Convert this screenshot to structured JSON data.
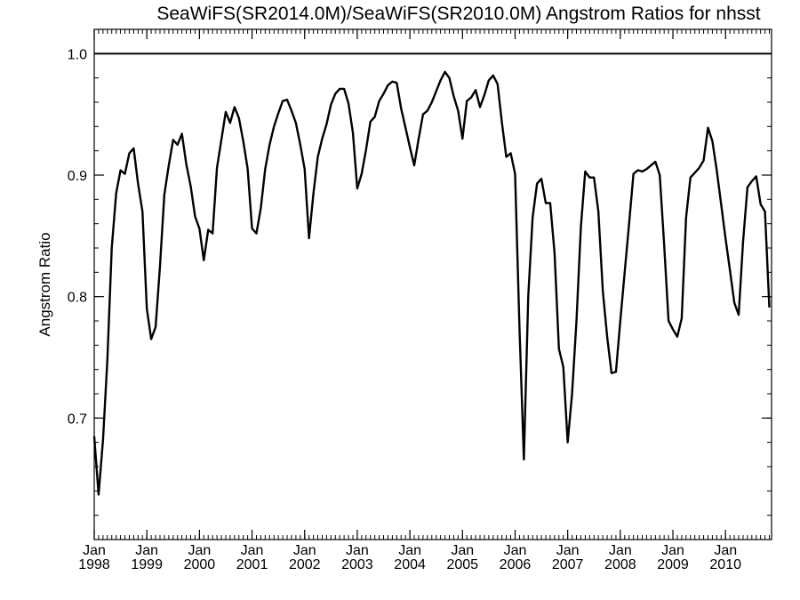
{
  "chart_data": {
    "type": "line",
    "title": "SeaWiFS(SR2014.0M)/SeaWiFS(SR2010.0M)  Angstrom Ratios for nhsst",
    "xlabel": "",
    "ylabel": "Angstrom Ratio",
    "xlim": [
      1998.0,
      2010.875
    ],
    "ylim": [
      0.6,
      1.02
    ],
    "x_ticks": [
      {
        "month": "Jan",
        "year": "1998",
        "value": 1998
      },
      {
        "month": "Jan",
        "year": "1999",
        "value": 1999
      },
      {
        "month": "Jan",
        "year": "2000",
        "value": 2000
      },
      {
        "month": "Jan",
        "year": "2001",
        "value": 2001
      },
      {
        "month": "Jan",
        "year": "2002",
        "value": 2002
      },
      {
        "month": "Jan",
        "year": "2003",
        "value": 2003
      },
      {
        "month": "Jan",
        "year": "2004",
        "value": 2004
      },
      {
        "month": "Jan",
        "year": "2005",
        "value": 2005
      },
      {
        "month": "Jan",
        "year": "2006",
        "value": 2006
      },
      {
        "month": "Jan",
        "year": "2007",
        "value": 2007
      },
      {
        "month": "Jan",
        "year": "2008",
        "value": 2008
      },
      {
        "month": "Jan",
        "year": "2009",
        "value": 2009
      },
      {
        "month": "Jan",
        "year": "2010",
        "value": 2010
      }
    ],
    "y_ticks": [
      {
        "label": "0.7",
        "value": 0.7
      },
      {
        "label": "0.8",
        "value": 0.8
      },
      {
        "label": "0.9",
        "value": 0.9
      },
      {
        "label": "1.0",
        "value": 1.0
      }
    ],
    "reference_line": {
      "y": 1.0
    },
    "grid": false,
    "series": [
      {
        "x": [
          1998.0,
          1998.083,
          1998.167,
          1998.25,
          1998.333,
          1998.417,
          1998.5,
          1998.583,
          1998.667,
          1998.75,
          1998.833,
          1998.917,
          1999.0,
          1999.083,
          1999.167,
          1999.25,
          1999.333,
          1999.417,
          1999.5,
          1999.583,
          1999.667,
          1999.75,
          1999.833,
          1999.917,
          2000.0,
          2000.083,
          2000.167,
          2000.25,
          2000.333,
          2000.417,
          2000.5,
          2000.583,
          2000.667,
          2000.75,
          2000.833,
          2000.917,
          2001.0,
          2001.083,
          2001.167,
          2001.25,
          2001.333,
          2001.417,
          2001.5,
          2001.583,
          2001.667,
          2001.75,
          2001.833,
          2001.917,
          2002.0,
          2002.083,
          2002.167,
          2002.25,
          2002.333,
          2002.417,
          2002.5,
          2002.583,
          2002.667,
          2002.75,
          2002.833,
          2002.917,
          2003.0,
          2003.083,
          2003.167,
          2003.25,
          2003.333,
          2003.417,
          2003.5,
          2003.583,
          2003.667,
          2003.75,
          2003.833,
          2003.917,
          2004.0,
          2004.083,
          2004.167,
          2004.25,
          2004.333,
          2004.417,
          2004.5,
          2004.583,
          2004.667,
          2004.75,
          2004.833,
          2004.917,
          2005.0,
          2005.083,
          2005.167,
          2005.25,
          2005.333,
          2005.417,
          2005.5,
          2005.583,
          2005.667,
          2005.75,
          2005.833,
          2005.917,
          2006.0,
          2006.083,
          2006.167,
          2006.25,
          2006.333,
          2006.417,
          2006.5,
          2006.583,
          2006.667,
          2006.75,
          2006.833,
          2006.917,
          2007.0,
          2007.083,
          2007.167,
          2007.25,
          2007.333,
          2007.417,
          2007.5,
          2007.583,
          2007.667,
          2007.75,
          2007.833,
          2007.917,
          2008.0,
          2008.083,
          2008.167,
          2008.25,
          2008.333,
          2008.417,
          2008.5,
          2008.583,
          2008.667,
          2008.75,
          2008.833,
          2008.917,
          2009.0,
          2009.083,
          2009.167,
          2009.25,
          2009.333,
          2009.417,
          2009.5,
          2009.583,
          2009.667,
          2009.75,
          2009.833,
          2009.917,
          2010.0,
          2010.083,
          2010.167,
          2010.25,
          2010.333,
          2010.417,
          2010.5,
          2010.583,
          2010.667,
          2010.75,
          2010.833
        ],
        "values": [
          0.685,
          0.637,
          0.682,
          0.748,
          0.84,
          0.885,
          0.904,
          0.901,
          0.918,
          0.922,
          0.893,
          0.87,
          0.79,
          0.765,
          0.775,
          0.825,
          0.884,
          0.908,
          0.929,
          0.925,
          0.934,
          0.909,
          0.891,
          0.866,
          0.856,
          0.83,
          0.855,
          0.852,
          0.906,
          0.929,
          0.952,
          0.943,
          0.956,
          0.947,
          0.928,
          0.905,
          0.856,
          0.852,
          0.873,
          0.905,
          0.925,
          0.94,
          0.951,
          0.961,
          0.962,
          0.953,
          0.943,
          0.925,
          0.905,
          0.848,
          0.885,
          0.915,
          0.93,
          0.942,
          0.958,
          0.967,
          0.971,
          0.971,
          0.959,
          0.935,
          0.889,
          0.901,
          0.921,
          0.944,
          0.948,
          0.961,
          0.967,
          0.974,
          0.977,
          0.976,
          0.955,
          0.939,
          0.923,
          0.908,
          0.93,
          0.95,
          0.953,
          0.96,
          0.969,
          0.978,
          0.985,
          0.98,
          0.965,
          0.953,
          0.93,
          0.961,
          0.964,
          0.97,
          0.956,
          0.966,
          0.978,
          0.982,
          0.975,
          0.943,
          0.915,
          0.918,
          0.901,
          0.775,
          0.666,
          0.8,
          0.865,
          0.893,
          0.897,
          0.877,
          0.877,
          0.836,
          0.757,
          0.742,
          0.68,
          0.72,
          0.78,
          0.857,
          0.903,
          0.898,
          0.898,
          0.87,
          0.805,
          0.767,
          0.737,
          0.738,
          0.78,
          0.82,
          0.86,
          0.901,
          0.904,
          0.903,
          0.905,
          0.908,
          0.911,
          0.9,
          0.843,
          0.78,
          0.773,
          0.767,
          0.782,
          0.865,
          0.898,
          0.902,
          0.906,
          0.912,
          0.939,
          0.928,
          0.904,
          0.876,
          0.848,
          0.822,
          0.795,
          0.785,
          0.845,
          0.89,
          0.895,
          0.899,
          0.876,
          0.87,
          0.791
        ]
      }
    ]
  }
}
